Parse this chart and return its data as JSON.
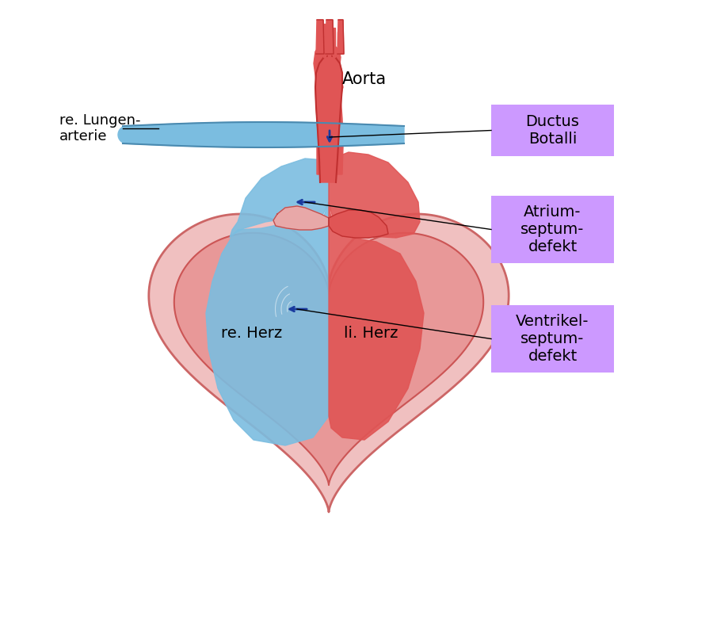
{
  "title": "",
  "background_color": "#ffffff",
  "label_aorta": "Aorta",
  "label_re_lungen": "re. Lungen-\narterie",
  "label_ductus": "Ductus\nBotalli",
  "label_atrium": "Atrium-\nseptum-\ndefekt",
  "label_ventrikel": "Ventrikel-\nseptum-\ndefekt",
  "label_re_herz": "re. Herz",
  "label_li_herz": "li. Herz",
  "box_color": "#cc99ff",
  "heart_outer_color": "#e8a0a0",
  "heart_inner_red": "#e05050",
  "heart_inner_blue": "#6ab4e8",
  "aorta_color": "#e05050",
  "pulm_artery_color": "#7fc8e8",
  "arrow_color": "#1a3a9e",
  "line_color": "#000000",
  "text_color": "#000000"
}
